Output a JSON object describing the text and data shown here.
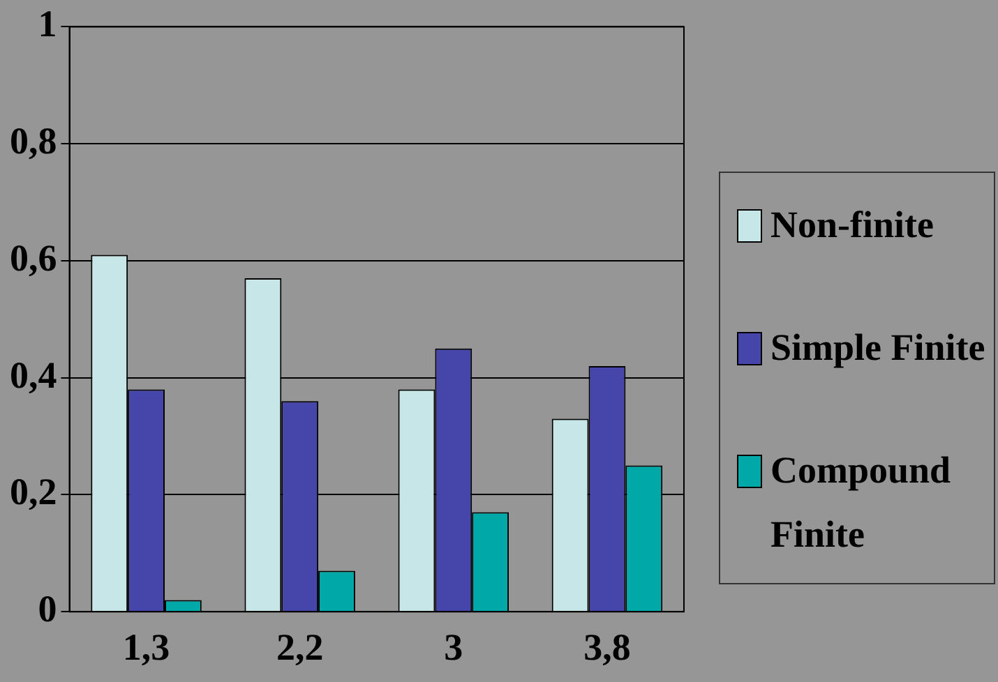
{
  "chart_data": {
    "type": "bar",
    "categories": [
      "1,3",
      "2,2",
      "3",
      "3,8"
    ],
    "series": [
      {
        "name": "Non-finite",
        "color": "#c6e6e8",
        "values": [
          0.61,
          0.57,
          0.38,
          0.33
        ]
      },
      {
        "name": "Simple Finite",
        "color": "#4646aa",
        "values": [
          0.38,
          0.36,
          0.45,
          0.42
        ]
      },
      {
        "name": "Compound Finite",
        "color": "#00a8a8",
        "values": [
          0.02,
          0.07,
          0.17,
          0.25
        ]
      }
    ],
    "ylim": [
      0,
      1
    ],
    "yticks": [
      0,
      {
        "value": 0.2,
        "label": "0,2"
      },
      {
        "value": 0.4,
        "label": "0,4"
      },
      {
        "value": 0.6,
        "label": "0,6"
      },
      {
        "value": 0.8,
        "label": "0,8"
      },
      1
    ],
    "grid": "y",
    "legend": "right"
  }
}
